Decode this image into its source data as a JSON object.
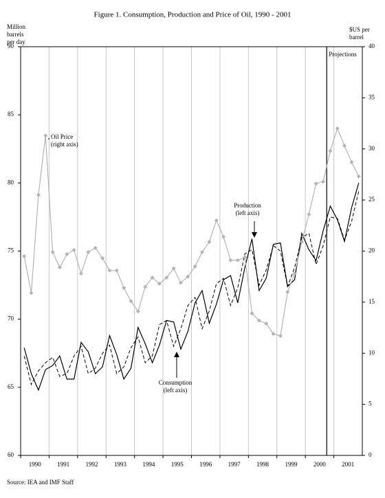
{
  "chart_data": {
    "type": "line",
    "title": "Figure 1. Consumption, Production and Price of Oil, 1990 - 2001",
    "y_label": [
      "Million",
      "barrels",
      "per day"
    ],
    "y2_label": [
      "$US per",
      "barrel"
    ],
    "source": "Source: IEA and IMF Staff",
    "x": [
      1990.125,
      1990.375,
      1990.625,
      1990.875,
      1991.125,
      1991.375,
      1991.625,
      1991.875,
      1992.125,
      1992.375,
      1992.625,
      1992.875,
      1993.125,
      1993.375,
      1993.625,
      1993.875,
      1994.125,
      1994.375,
      1994.625,
      1994.875,
      1995.125,
      1995.375,
      1995.625,
      1995.875,
      1996.125,
      1996.375,
      1996.625,
      1996.875,
      1997.125,
      1997.375,
      1997.625,
      1997.875,
      1998.125,
      1998.375,
      1998.625,
      1998.875,
      1999.125,
      1999.375,
      1999.625,
      1999.875,
      2000.125,
      2000.375,
      2000.625,
      2000.875,
      2001.125,
      2001.375,
      2001.625,
      2001.875
    ],
    "xlim": [
      1990,
      2002
    ],
    "xticks": [
      {
        "value": 1990.5,
        "label": "1990"
      },
      {
        "value": 1991.5,
        "label": "1991"
      },
      {
        "value": 1992.5,
        "label": "1992"
      },
      {
        "value": 1993.5,
        "label": "1993"
      },
      {
        "value": 1994.5,
        "label": "1994"
      },
      {
        "value": 1995.5,
        "label": "1995"
      },
      {
        "value": 1996.5,
        "label": "1996"
      },
      {
        "value": 1997.5,
        "label": "1997"
      },
      {
        "value": 1998.5,
        "label": "1998"
      },
      {
        "value": 1999.5,
        "label": "1999"
      },
      {
        "value": 2000.5,
        "label": "2000"
      },
      {
        "value": 2001.5,
        "label": "2001"
      }
    ],
    "ylim": [
      60,
      90
    ],
    "yticks": [
      60,
      65,
      70,
      75,
      80,
      85,
      90
    ],
    "y2lim": [
      0,
      40
    ],
    "y2ticks": [
      0,
      5,
      10,
      15,
      20,
      25,
      30,
      35,
      40
    ],
    "grid": true,
    "projection_start": 2000.75,
    "projection_label": "Projections",
    "series": [
      {
        "name": "Production",
        "label": [
          "Production",
          "(left axis)"
        ],
        "color": "#000000",
        "dash": false,
        "values": [
          67.9,
          66.0,
          64.8,
          66.3,
          66.6,
          67.3,
          65.6,
          65.6,
          68.3,
          67.6,
          66.0,
          66.5,
          68.8,
          67.4,
          65.6,
          66.4,
          69.4,
          68.2,
          66.8,
          68.1,
          69.9,
          69.8,
          67.8,
          69.1,
          71.2,
          72.1,
          69.7,
          71.1,
          72.9,
          73.2,
          71.2,
          73.8,
          75.9,
          72.1,
          73.0,
          75.5,
          75.6,
          72.4,
          72.9,
          76.3,
          75.1,
          74.3,
          76.5,
          78.3,
          77.3,
          75.7,
          78.2,
          80.0
        ]
      },
      {
        "name": "Consumption",
        "label": [
          "Consumption",
          "(left axis)"
        ],
        "color": "#000000",
        "dash": true,
        "values": [
          67.3,
          65.2,
          66.2,
          66.8,
          67.2,
          65.8,
          66.0,
          67.3,
          68.0,
          66.0,
          66.4,
          67.5,
          68.1,
          66.0,
          66.5,
          67.9,
          68.7,
          66.8,
          67.3,
          69.6,
          69.9,
          68.0,
          69.3,
          71.0,
          71.6,
          69.3,
          70.6,
          72.6,
          73.0,
          71.0,
          72.3,
          74.8,
          75.1,
          72.5,
          73.6,
          75.4,
          75.0,
          72.4,
          73.8,
          76.0,
          76.3,
          74.0,
          75.4,
          77.5,
          77.4,
          75.8,
          77.2,
          79.4
        ]
      },
      {
        "name": "Oil Price",
        "label": [
          "Oil Price",
          "(right axis)"
        ],
        "color": "#b4b4b4",
        "dash": false,
        "axis": "y2",
        "marker": "diamond",
        "values": [
          19.5,
          15.9,
          25.5,
          31.3,
          19.9,
          18.4,
          19.7,
          20.1,
          17.8,
          19.9,
          20.3,
          19.3,
          18.1,
          18.1,
          16.4,
          15.1,
          14.1,
          16.5,
          17.4,
          16.8,
          17.4,
          18.3,
          16.9,
          17.5,
          18.5,
          19.9,
          20.9,
          23.0,
          21.4,
          19.1,
          19.1,
          19.4,
          13.9,
          13.2,
          12.9,
          11.9,
          11.7,
          16.0,
          17.8,
          20.9,
          23.6,
          26.6,
          26.8,
          29.8,
          32.0,
          30.3,
          28.7,
          27.3
        ]
      }
    ]
  }
}
